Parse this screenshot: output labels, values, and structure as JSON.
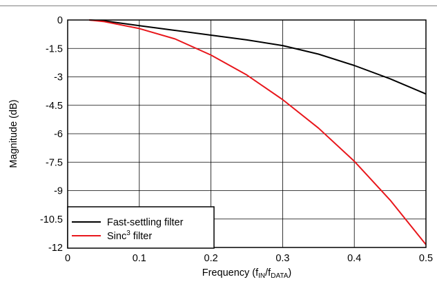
{
  "chart_data": {
    "type": "line",
    "xlabel": "Frequency (fIN/fDATA)",
    "xlabel_parts": {
      "base": "Frequency (f",
      "sub1": "IN",
      "mid": "/f",
      "sub2": "DATA",
      "tail": ")"
    },
    "ylabel": "Magnitude (dB)",
    "xlim": [
      0,
      0.5
    ],
    "ylim": [
      -12,
      0
    ],
    "x_ticks": [
      "0",
      "0.1",
      "0.2",
      "0.3",
      "0.4",
      "0.5"
    ],
    "y_ticks": [
      "0",
      "-1.5",
      "-3",
      "-4.5",
      "-6",
      "-7.5",
      "-9",
      "-10.5",
      "-12"
    ],
    "grid": true,
    "legend_position": "bottom-left",
    "series": [
      {
        "name": "Fast-settling filter",
        "color": "#000000",
        "x": [
          0.03,
          0.05,
          0.1,
          0.15,
          0.2,
          0.25,
          0.3,
          0.35,
          0.4,
          0.45,
          0.5
        ],
        "y": [
          0,
          -0.04,
          -0.3,
          -0.55,
          -0.8,
          -1.05,
          -1.35,
          -1.8,
          -2.4,
          -3.1,
          -3.9
        ]
      },
      {
        "name": "Sinc3 filter",
        "name_parts": {
          "base": "Sinc",
          "sup": "3",
          "tail": " filter"
        },
        "color": "#e8161b",
        "x": [
          0.03,
          0.05,
          0.1,
          0.15,
          0.2,
          0.25,
          0.3,
          0.35,
          0.4,
          0.45,
          0.5
        ],
        "y": [
          0,
          -0.08,
          -0.45,
          -1.0,
          -1.85,
          -2.9,
          -4.2,
          -5.7,
          -7.45,
          -9.5,
          -11.85
        ]
      }
    ]
  }
}
